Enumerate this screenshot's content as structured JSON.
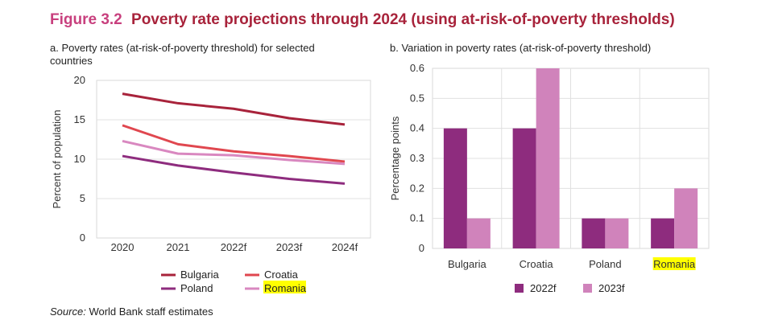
{
  "figure": {
    "number": "Figure 3.2",
    "title": "Poverty rate projections through 2024 (using at-risk-of-poverty thresholds)"
  },
  "source": {
    "label": "Source:",
    "text": "World Bank staff estimates"
  },
  "highlight_color": "#ffff00",
  "chart_data": [
    {
      "type": "line",
      "title": "a. Poverty rates (at-risk-of-poverty threshold) for selected countries",
      "xlabel": "",
      "ylabel": "Percent of population",
      "x": [
        "2020",
        "2021",
        "2022f",
        "2023f",
        "2024f"
      ],
      "ylim": [
        0,
        20
      ],
      "yticks": [
        0,
        5,
        10,
        15,
        20
      ],
      "grid": true,
      "legend": "bottom",
      "series": [
        {
          "name": "Bulgaria",
          "color": "#a8233b",
          "values": [
            18.3,
            17.1,
            16.4,
            15.2,
            14.4
          ]
        },
        {
          "name": "Croatia",
          "color": "#e0474f",
          "values": [
            14.3,
            11.9,
            11.0,
            10.4,
            9.7
          ]
        },
        {
          "name": "Poland",
          "color": "#8e2c7e",
          "values": [
            10.4,
            9.2,
            8.3,
            7.5,
            6.9
          ]
        },
        {
          "name": "Romania",
          "color": "#d988c0",
          "values": [
            12.3,
            10.7,
            10.5,
            9.9,
            9.4
          ],
          "highlight": true
        }
      ]
    },
    {
      "type": "bar",
      "title": "b. Variation in poverty rates (at-risk-of-poverty threshold)",
      "xlabel": "",
      "ylabel": "Percentage points",
      "categories": [
        "Bulgaria",
        "Croatia",
        "Poland",
        "Romania"
      ],
      "highlight_category": "Romania",
      "ylim": [
        0,
        0.6
      ],
      "yticks": [
        "0",
        "0.1",
        "0.2",
        "0.3",
        "0.4",
        "0.5",
        "0.6"
      ],
      "grid": true,
      "legend": "bottom",
      "series": [
        {
          "name": "2022f",
          "color": "#8e2c7e",
          "values": [
            0.4,
            0.4,
            0.1,
            0.1
          ]
        },
        {
          "name": "2023f",
          "color": "#d083bb",
          "values": [
            0.1,
            0.6,
            0.1,
            0.2
          ]
        }
      ]
    }
  ]
}
